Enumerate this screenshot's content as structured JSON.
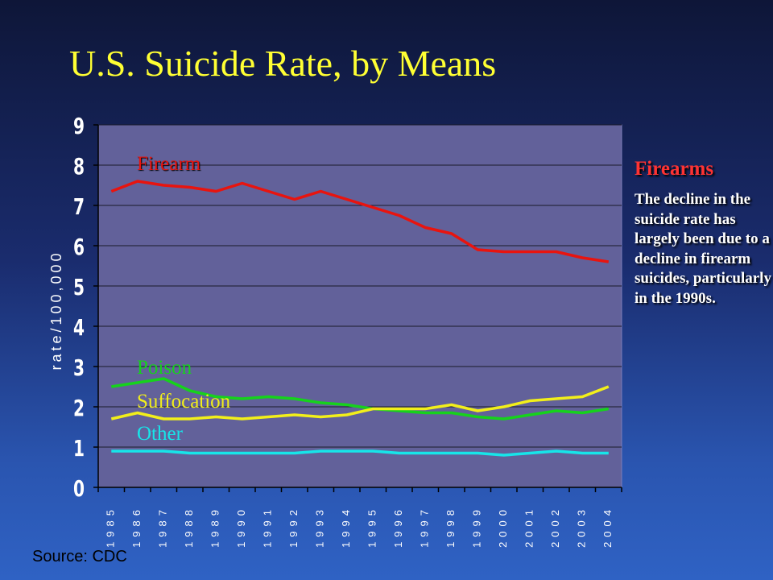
{
  "title": "U.S. Suicide Rate, by Means",
  "side_panel": {
    "heading": "Firearms",
    "text": "The decline in the suicide rate has largely been due to a decline in firearm suicides, particularly in the 1990s."
  },
  "source": "Source: CDC",
  "colors": {
    "plot_bg": "#62619a",
    "firearm": "#e8140f",
    "poison": "#16d21c",
    "suffocation": "#f2ef1a",
    "other": "#17e5e9",
    "title": "#ffff33"
  },
  "chart_data": {
    "type": "line",
    "title": "",
    "xlabel": "",
    "ylabel": "rate/100,000",
    "ylim": [
      0,
      9
    ],
    "yticks": [
      "0",
      "1",
      "2",
      "3",
      "4",
      "5",
      "6",
      "7",
      "8",
      "9"
    ],
    "grid": "horizontal",
    "x": [
      "1985",
      "1986",
      "1987",
      "1988",
      "1989",
      "1990",
      "1991",
      "1992",
      "1993",
      "1994",
      "1995",
      "1996",
      "1997",
      "1998",
      "1999",
      "2000",
      "2001",
      "2002",
      "2003",
      "2004"
    ],
    "series": [
      {
        "name": "Firearm",
        "color": "#e8140f",
        "values": [
          7.35,
          7.6,
          7.5,
          7.45,
          7.35,
          7.55,
          7.35,
          7.15,
          7.35,
          7.15,
          6.95,
          6.75,
          6.45,
          6.3,
          5.9,
          5.85,
          5.85,
          5.85,
          5.7,
          5.6
        ]
      },
      {
        "name": "Poison",
        "color": "#16d21c",
        "values": [
          2.5,
          2.6,
          2.7,
          2.4,
          2.25,
          2.2,
          2.25,
          2.2,
          2.1,
          2.05,
          1.95,
          1.9,
          1.85,
          1.85,
          1.75,
          1.7,
          1.8,
          1.9,
          1.85,
          1.95
        ]
      },
      {
        "name": "Suffocation",
        "color": "#f2ef1a",
        "values": [
          1.7,
          1.85,
          1.7,
          1.7,
          1.75,
          1.7,
          1.75,
          1.8,
          1.75,
          1.8,
          1.95,
          1.95,
          1.95,
          2.05,
          1.9,
          2.0,
          2.15,
          2.2,
          2.25,
          2.5
        ]
      },
      {
        "name": "Other",
        "color": "#17e5e9",
        "values": [
          0.9,
          0.9,
          0.9,
          0.85,
          0.85,
          0.85,
          0.85,
          0.85,
          0.9,
          0.9,
          0.9,
          0.85,
          0.85,
          0.85,
          0.85,
          0.8,
          0.85,
          0.9,
          0.85,
          0.85
        ]
      }
    ]
  }
}
